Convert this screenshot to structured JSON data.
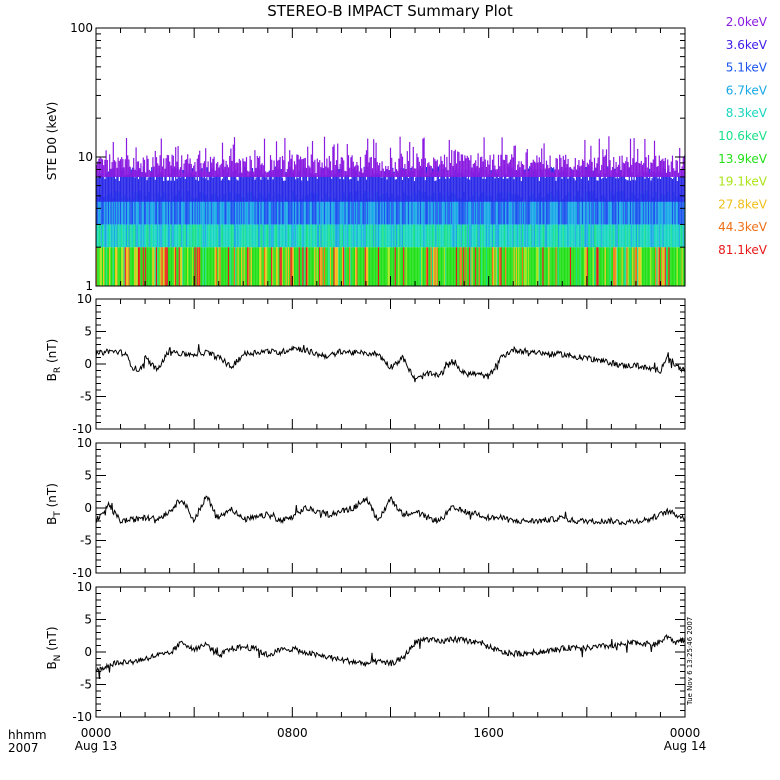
{
  "title": "STEREO-B IMPACT Summary Plot",
  "colors": {
    "axis": "#000000",
    "background": "#ffffff",
    "trace": "#000000"
  },
  "timestamp": "Tue Nov  6 13:25:46 2007",
  "corner_label": {
    "line1": "hhmm",
    "line2": "2007"
  },
  "x_axis": {
    "ticks": [
      {
        "label": "0000",
        "date": "Aug 13",
        "value": 0
      },
      {
        "label": "0800",
        "date": "",
        "value": 8
      },
      {
        "label": "1600",
        "date": "",
        "value": 16
      },
      {
        "label": "0000",
        "date": "Aug 14",
        "value": 24
      }
    ]
  },
  "chart_data": [
    {
      "type": "heatmap",
      "ylabel": "STE D0 (keV)",
      "yscale": "log",
      "ylim": [
        1,
        100
      ],
      "ytick_labels": [
        "1",
        "10",
        "100"
      ],
      "xlim": [
        0,
        24
      ],
      "energy_channels": [
        {
          "label": "2.0keV",
          "color": "#8a1ae0",
          "typical_value": 9.5
        },
        {
          "label": "3.6keV",
          "color": "#3a1ae8",
          "typical_value": 7.5
        },
        {
          "label": "5.1keV",
          "color": "#1a55ee",
          "typical_value": 5.2
        },
        {
          "label": "6.7keV",
          "color": "#18a8e6",
          "typical_value": 4.1
        },
        {
          "label": "8.3keV",
          "color": "#18d6c0",
          "typical_value": 3.2
        },
        {
          "label": "10.6keV",
          "color": "#18e08a",
          "typical_value": 2.3
        },
        {
          "label": "13.9keV",
          "color": "#22e018",
          "typical_value": 1.9
        },
        {
          "label": "19.1keV",
          "color": "#aae418",
          "typical_value": 1.7
        },
        {
          "label": "27.8keV",
          "color": "#f0c018",
          "typical_value": 1.5
        },
        {
          "label": "44.3keV",
          "color": "#f07018",
          "typical_value": 1.3
        },
        {
          "label": "81.1keV",
          "color": "#e81818",
          "typical_value": 1.1
        }
      ]
    },
    {
      "type": "line",
      "ylabel": "B",
      "ylabel_sub": "R",
      "ylabel_unit": " (nT)",
      "ylim": [
        -10,
        10
      ],
      "ytick_labels": [
        "10",
        "5",
        "0",
        "-5",
        "-10"
      ],
      "xlim": [
        0,
        24
      ],
      "x": [
        0,
        0.5,
        1,
        1.2,
        1.5,
        1.8,
        2,
        2.5,
        3,
        3.5,
        4,
        4.5,
        5,
        5.5,
        6,
        6.5,
        7,
        7.5,
        8,
        8.5,
        9,
        9.5,
        10,
        10.5,
        11,
        11.5,
        12,
        12.5,
        13,
        13.5,
        14,
        14.5,
        15,
        15.5,
        16,
        16.5,
        17,
        17.5,
        18,
        18.5,
        19,
        19.5,
        20,
        20.5,
        21,
        21.5,
        22,
        22.5,
        23,
        23.3,
        23.6,
        24
      ],
      "values": [
        1.5,
        2,
        1.8,
        1.5,
        -0.5,
        -1,
        1,
        -1,
        2.2,
        1.5,
        1.5,
        1.8,
        1,
        -0.5,
        1.5,
        1.8,
        2,
        1.7,
        2.5,
        2.2,
        1.5,
        1.2,
        2,
        1.7,
        1.7,
        1.5,
        -0.5,
        1,
        -2.5,
        -1.5,
        -1.8,
        0.5,
        -1.5,
        -1.5,
        -2,
        1,
        2.2,
        2,
        1.8,
        1.5,
        1.5,
        1.1,
        1,
        0.5,
        0.2,
        -0.3,
        -0.2,
        -0.7,
        -1,
        1.5,
        -0.2,
        -1
      ]
    },
    {
      "type": "line",
      "ylabel": "B",
      "ylabel_sub": "T",
      "ylabel_unit": " (nT)",
      "ylim": [
        -10,
        10
      ],
      "ytick_labels": [
        "10",
        "5",
        "0",
        "-5",
        "-10"
      ],
      "xlim": [
        0,
        24
      ],
      "x": [
        0,
        0.5,
        1,
        1.5,
        2,
        2.5,
        3,
        3.5,
        4,
        4.5,
        5,
        5.5,
        6,
        6.5,
        7,
        7.5,
        8,
        8.5,
        9,
        9.5,
        10,
        10.5,
        11,
        11.5,
        12,
        12.5,
        13,
        13.5,
        14,
        14.5,
        15,
        15.5,
        16,
        16.5,
        17,
        17.5,
        18,
        18.5,
        19,
        19.5,
        20,
        20.5,
        21,
        21.5,
        22,
        22.5,
        23,
        23.3,
        23.6,
        24
      ],
      "values": [
        -2,
        0.5,
        -2,
        -1.8,
        -1.5,
        -1.7,
        -0.5,
        1.5,
        -2,
        1.8,
        -1.5,
        0,
        -1.8,
        -1.5,
        -1,
        -2,
        -1.5,
        0,
        -0.5,
        -1,
        -0.5,
        0,
        1.5,
        -2,
        1.5,
        -1,
        -0.5,
        -1.5,
        -2,
        0,
        -0.5,
        -0.8,
        -1.5,
        -1.5,
        -2,
        -2,
        -2,
        -1.8,
        -1.5,
        -2,
        -2,
        -2,
        -2,
        -2.2,
        -2,
        -1.8,
        -1,
        -0.5,
        -1,
        -1.5
      ]
    },
    {
      "type": "line",
      "ylabel": "B",
      "ylabel_sub": "N",
      "ylabel_unit": " (nT)",
      "ylim": [
        -10,
        10
      ],
      "ytick_labels": [
        "10",
        "5",
        "0",
        "-5",
        "-10"
      ],
      "xlim": [
        0,
        24
      ],
      "x": [
        0,
        0.5,
        1,
        1.5,
        2,
        2.5,
        3,
        3.5,
        4,
        4.5,
        5,
        5.5,
        6,
        6.5,
        7,
        7.5,
        8,
        8.5,
        9,
        9.5,
        10,
        10.5,
        11,
        11.5,
        12,
        12.5,
        13,
        13.5,
        14,
        14.5,
        15,
        15.5,
        16,
        16.5,
        17,
        17.5,
        18,
        18.5,
        19,
        19.5,
        20,
        20.5,
        21,
        21.5,
        22,
        22.5,
        23,
        23.3,
        23.6,
        24
      ],
      "values": [
        -3,
        -2,
        -1.5,
        -1.5,
        -1,
        -0.5,
        -0.3,
        1.5,
        0.5,
        1.2,
        -0.5,
        0.5,
        0.8,
        0.5,
        -0.5,
        0.3,
        0.5,
        0,
        -0.5,
        -0.8,
        -1.2,
        -1.5,
        -1.8,
        -1.5,
        -1.8,
        -1,
        1.5,
        2,
        1.5,
        2,
        1.8,
        1.5,
        0.8,
        0,
        -0.3,
        -0.2,
        0,
        0.2,
        0.5,
        0.8,
        0.6,
        0.8,
        1,
        1.2,
        1.5,
        1.2,
        1.5,
        2.5,
        1.5,
        2
      ]
    }
  ]
}
